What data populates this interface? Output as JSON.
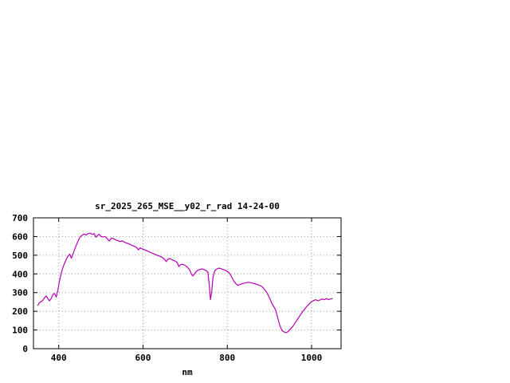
{
  "window": {
    "background": "#ffffff"
  },
  "chart_data": {
    "type": "line",
    "title": "sr_2025_265_MSE__y02_r_rad 14-24-00",
    "xlabel": "nm",
    "ylabel": "",
    "xlim": [
      340,
      1070
    ],
    "ylim": [
      0,
      700
    ],
    "xticks": [
      400,
      600,
      800,
      1000
    ],
    "yticks": [
      0,
      100,
      200,
      300,
      400,
      500,
      600,
      700
    ],
    "grid": true,
    "legend_position": "none",
    "line_color": "#b400b4",
    "axis_color": "#000000",
    "grid_color": "#9a9a9a",
    "series": [
      {
        "name": "sr_2025_265_MSE__y02_r_rad",
        "points": [
          [
            350,
            230
          ],
          [
            354,
            246
          ],
          [
            358,
            252
          ],
          [
            362,
            258
          ],
          [
            366,
            272
          ],
          [
            370,
            282
          ],
          [
            374,
            268
          ],
          [
            378,
            256
          ],
          [
            382,
            268
          ],
          [
            386,
            290
          ],
          [
            390,
            296
          ],
          [
            394,
            276
          ],
          [
            398,
            315
          ],
          [
            402,
            365
          ],
          [
            406,
            405
          ],
          [
            410,
            435
          ],
          [
            414,
            458
          ],
          [
            418,
            478
          ],
          [
            422,
            496
          ],
          [
            426,
            506
          ],
          [
            430,
            484
          ],
          [
            434,
            508
          ],
          [
            438,
            532
          ],
          [
            442,
            556
          ],
          [
            446,
            576
          ],
          [
            450,
            596
          ],
          [
            455,
            606
          ],
          [
            460,
            613
          ],
          [
            465,
            608
          ],
          [
            470,
            616
          ],
          [
            475,
            618
          ],
          [
            480,
            611
          ],
          [
            484,
            616
          ],
          [
            488,
            596
          ],
          [
            492,
            606
          ],
          [
            496,
            612
          ],
          [
            500,
            601
          ],
          [
            505,
            597
          ],
          [
            510,
            600
          ],
          [
            515,
            588
          ],
          [
            520,
            576
          ],
          [
            525,
            592
          ],
          [
            530,
            588
          ],
          [
            535,
            583
          ],
          [
            540,
            578
          ],
          [
            545,
            573
          ],
          [
            550,
            577
          ],
          [
            555,
            571
          ],
          [
            560,
            566
          ],
          [
            565,
            562
          ],
          [
            570,
            557
          ],
          [
            575,
            552
          ],
          [
            580,
            547
          ],
          [
            585,
            541
          ],
          [
            589,
            529
          ],
          [
            593,
            539
          ],
          [
            597,
            535
          ],
          [
            601,
            532
          ],
          [
            606,
            527
          ],
          [
            611,
            522
          ],
          [
            616,
            517
          ],
          [
            621,
            512
          ],
          [
            626,
            507
          ],
          [
            631,
            502
          ],
          [
            636,
            498
          ],
          [
            641,
            494
          ],
          [
            646,
            488
          ],
          [
            651,
            478
          ],
          [
            655,
            466
          ],
          [
            659,
            478
          ],
          [
            663,
            482
          ],
          [
            667,
            478
          ],
          [
            671,
            474
          ],
          [
            676,
            469
          ],
          [
            681,
            461
          ],
          [
            685,
            439
          ],
          [
            689,
            449
          ],
          [
            693,
            452
          ],
          [
            697,
            448
          ],
          [
            701,
            444
          ],
          [
            706,
            434
          ],
          [
            711,
            420
          ],
          [
            715,
            399
          ],
          [
            718,
            389
          ],
          [
            722,
            399
          ],
          [
            726,
            412
          ],
          [
            730,
            420
          ],
          [
            735,
            424
          ],
          [
            740,
            427
          ],
          [
            745,
            423
          ],
          [
            750,
            418
          ],
          [
            754,
            409
          ],
          [
            757,
            345
          ],
          [
            760,
            263
          ],
          [
            763,
            305
          ],
          [
            766,
            382
          ],
          [
            770,
            416
          ],
          [
            775,
            426
          ],
          [
            780,
            431
          ],
          [
            785,
            428
          ],
          [
            790,
            424
          ],
          [
            795,
            419
          ],
          [
            800,
            414
          ],
          [
            805,
            404
          ],
          [
            810,
            386
          ],
          [
            815,
            363
          ],
          [
            820,
            349
          ],
          [
            825,
            339
          ],
          [
            830,
            343
          ],
          [
            835,
            347
          ],
          [
            840,
            351
          ],
          [
            845,
            353
          ],
          [
            850,
            355
          ],
          [
            855,
            353
          ],
          [
            860,
            351
          ],
          [
            865,
            348
          ],
          [
            870,
            344
          ],
          [
            875,
            340
          ],
          [
            880,
            336
          ],
          [
            885,
            326
          ],
          [
            890,
            312
          ],
          [
            895,
            296
          ],
          [
            900,
            273
          ],
          [
            905,
            246
          ],
          [
            910,
            226
          ],
          [
            915,
            206
          ],
          [
            920,
            162
          ],
          [
            925,
            122
          ],
          [
            930,
            97
          ],
          [
            935,
            89
          ],
          [
            940,
            86
          ],
          [
            945,
            93
          ],
          [
            950,
            106
          ],
          [
            955,
            118
          ],
          [
            960,
            135
          ],
          [
            965,
            152
          ],
          [
            970,
            169
          ],
          [
            975,
            186
          ],
          [
            980,
            201
          ],
          [
            985,
            216
          ],
          [
            990,
            229
          ],
          [
            995,
            241
          ],
          [
            1000,
            251
          ],
          [
            1005,
            258
          ],
          [
            1010,
            262
          ],
          [
            1015,
            256
          ],
          [
            1020,
            261
          ],
          [
            1025,
            266
          ],
          [
            1030,
            262
          ],
          [
            1035,
            268
          ],
          [
            1040,
            263
          ],
          [
            1045,
            266
          ],
          [
            1050,
            268
          ]
        ]
      }
    ]
  }
}
